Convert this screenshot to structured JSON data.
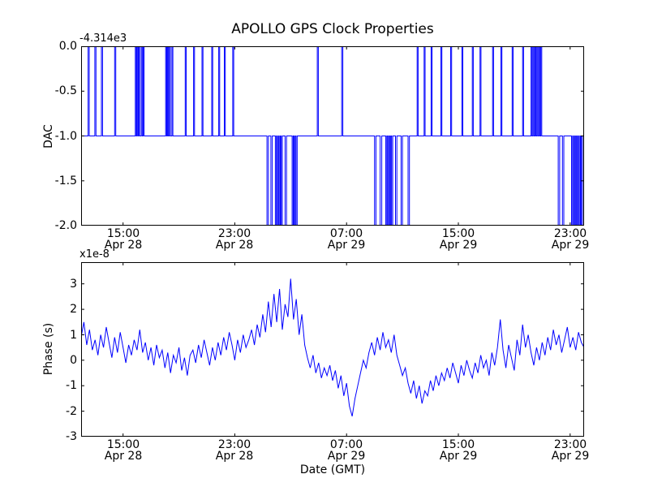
{
  "figure": {
    "background": "#ffffff",
    "text_color": "#000000",
    "frame_color": "#000000"
  },
  "chart_data": [
    {
      "type": "line",
      "title": "APOLLO GPS Clock Properties",
      "ylabel": "DAC",
      "y_offset_label": "-4.314e3",
      "y_offset_value": -4314,
      "xlim": [
        0,
        36
      ],
      "ylim": [
        -2.0,
        0.0
      ],
      "yticks": [
        0.0,
        -0.5,
        -1.0,
        -1.5,
        -2.0
      ],
      "ytick_labels": [
        "0.0",
        "-0.5",
        "-1.0",
        "-1.5",
        "-2.0"
      ],
      "xticks": [
        3,
        11,
        19,
        27,
        35
      ],
      "xtick_labels": [
        {
          "time": "15:00",
          "date": "Apr 28"
        },
        {
          "time": "23:00",
          "date": "Apr 28"
        },
        {
          "time": "07:00",
          "date": "Apr 29"
        },
        {
          "time": "15:00",
          "date": "Apr 29"
        },
        {
          "time": "23:00",
          "date": "Apr 29"
        }
      ],
      "x_unit": "hours",
      "grid": false,
      "legend": false,
      "line_color": "#0000ff",
      "series": {
        "name": "DAC",
        "baseline": -1.0,
        "events": [
          [
            0.5,
            0.58,
            0
          ],
          [
            0.98,
            1.06,
            0
          ],
          [
            1.45,
            1.53,
            0
          ],
          [
            2.4,
            2.48,
            0
          ],
          [
            3.88,
            3.95,
            0
          ],
          [
            4.0,
            4.07,
            0
          ],
          [
            4.12,
            4.19,
            0
          ],
          [
            4.3,
            4.37,
            0
          ],
          [
            4.44,
            4.51,
            0
          ],
          [
            6.05,
            6.12,
            0
          ],
          [
            6.18,
            6.25,
            0
          ],
          [
            6.32,
            6.39,
            0
          ],
          [
            6.5,
            6.57,
            0
          ],
          [
            7.45,
            7.52,
            0
          ],
          [
            8.05,
            8.12,
            0
          ],
          [
            8.65,
            8.72,
            0
          ],
          [
            9.35,
            9.42,
            0
          ],
          [
            9.85,
            9.92,
            0
          ],
          [
            10.25,
            10.32,
            0
          ],
          [
            10.85,
            10.92,
            0
          ],
          [
            13.3,
            13.4,
            -2
          ],
          [
            13.58,
            13.68,
            -2
          ],
          [
            13.9,
            13.98,
            -2
          ],
          [
            14.04,
            14.12,
            -2
          ],
          [
            14.18,
            14.26,
            -2
          ],
          [
            14.32,
            14.4,
            -2
          ],
          [
            14.6,
            14.7,
            -2
          ],
          [
            15.1,
            15.18,
            -2
          ],
          [
            15.24,
            15.32,
            -2
          ],
          [
            15.38,
            15.46,
            -2
          ],
          [
            16.9,
            16.98,
            0
          ],
          [
            18.65,
            18.73,
            0
          ],
          [
            21.0,
            21.1,
            -2
          ],
          [
            21.4,
            21.52,
            -2
          ],
          [
            21.8,
            21.88,
            -2
          ],
          [
            21.94,
            22.02,
            -2
          ],
          [
            22.08,
            22.16,
            -2
          ],
          [
            22.22,
            22.3,
            -2
          ],
          [
            22.5,
            22.6,
            -2
          ],
          [
            22.9,
            23.0,
            -2
          ],
          [
            23.4,
            23.5,
            -2
          ],
          [
            24.05,
            24.12,
            0
          ],
          [
            24.55,
            24.62,
            0
          ],
          [
            25.05,
            25.12,
            0
          ],
          [
            25.75,
            25.82,
            0
          ],
          [
            26.45,
            26.52,
            0
          ],
          [
            27.25,
            27.32,
            0
          ],
          [
            28.0,
            28.07,
            0
          ],
          [
            28.55,
            28.62,
            0
          ],
          [
            29.45,
            29.52,
            0
          ],
          [
            30.05,
            30.12,
            0
          ],
          [
            30.85,
            30.92,
            0
          ],
          [
            31.6,
            31.67,
            0
          ],
          [
            32.2,
            32.27,
            0
          ],
          [
            32.34,
            32.41,
            0
          ],
          [
            32.48,
            32.55,
            0
          ],
          [
            32.62,
            32.69,
            0
          ],
          [
            32.76,
            32.83,
            0
          ],
          [
            32.9,
            32.97,
            0
          ],
          [
            34.15,
            34.25,
            -2
          ],
          [
            34.45,
            34.55,
            -2
          ],
          [
            35.1,
            35.18,
            -2
          ],
          [
            35.24,
            35.32,
            -2
          ],
          [
            35.38,
            35.46,
            -2
          ],
          [
            35.52,
            35.6,
            -2
          ],
          [
            35.66,
            35.74,
            -2
          ],
          [
            35.8,
            35.88,
            -2
          ]
        ]
      }
    },
    {
      "type": "line",
      "ylabel": "Phase (s)",
      "y_scale_label": "x1e-8",
      "y_unit_multiplier": 1e-08,
      "xlabel": "Date (GMT)",
      "xlim": [
        0,
        36
      ],
      "ylim": [
        -3,
        3.85
      ],
      "yticks": [
        3,
        2,
        1,
        0,
        -1,
        -2,
        -3
      ],
      "ytick_labels": [
        "3",
        "2",
        "1",
        "0",
        "-1",
        "-2",
        "-3"
      ],
      "xticks": [
        3,
        11,
        19,
        27,
        35
      ],
      "xtick_labels": [
        {
          "time": "15:00",
          "date": "Apr 28"
        },
        {
          "time": "23:00",
          "date": "Apr 28"
        },
        {
          "time": "07:00",
          "date": "Apr 29"
        },
        {
          "time": "15:00",
          "date": "Apr 29"
        },
        {
          "time": "23:00",
          "date": "Apr 29"
        }
      ],
      "x_unit": "hours",
      "grid": false,
      "legend": false,
      "line_color": "#0000ff",
      "series": {
        "name": "Phase",
        "x_start": 0,
        "x_step": 0.2,
        "y": [
          0.9,
          1.5,
          0.6,
          1.2,
          0.4,
          0.8,
          0.2,
          1.0,
          0.5,
          1.3,
          0.7,
          0.1,
          0.9,
          0.3,
          1.1,
          0.5,
          -0.1,
          0.6,
          0.2,
          0.8,
          0.4,
          1.2,
          0.3,
          0.7,
          0.0,
          0.5,
          -0.2,
          0.6,
          0.1,
          0.4,
          -0.3,
          0.3,
          -0.5,
          0.2,
          -0.1,
          0.5,
          -0.4,
          0.1,
          -0.6,
          0.2,
          0.4,
          -0.1,
          0.6,
          0.1,
          0.8,
          0.3,
          -0.2,
          0.5,
          0.0,
          0.7,
          0.2,
          0.9,
          0.4,
          1.1,
          0.6,
          0.0,
          0.8,
          0.3,
          1.0,
          0.5,
          0.8,
          1.2,
          0.6,
          1.4,
          0.9,
          1.8,
          1.1,
          2.3,
          1.3,
          2.6,
          1.5,
          2.8,
          1.2,
          2.2,
          1.7,
          3.2,
          1.6,
          2.4,
          1.0,
          1.8,
          0.6,
          0.1,
          -0.3,
          0.2,
          -0.5,
          -0.1,
          -0.7,
          -0.3,
          -0.6,
          -0.2,
          -0.8,
          -0.4,
          -1.1,
          -0.6,
          -1.4,
          -0.9,
          -1.8,
          -2.2,
          -1.5,
          -1.0,
          -0.5,
          0.0,
          -0.3,
          0.3,
          0.7,
          0.2,
          0.9,
          0.4,
          1.1,
          0.5,
          0.8,
          0.3,
          1.0,
          0.2,
          -0.2,
          -0.6,
          -0.3,
          -0.9,
          -1.3,
          -0.8,
          -1.5,
          -1.0,
          -1.7,
          -1.2,
          -1.4,
          -0.8,
          -1.2,
          -0.6,
          -1.0,
          -0.5,
          -0.8,
          -0.3,
          -0.7,
          -0.1,
          -0.5,
          -0.9,
          -0.2,
          -0.6,
          0.0,
          -0.4,
          -0.7,
          -0.1,
          -0.5,
          0.2,
          -0.3,
          0.0,
          -0.6,
          0.3,
          -0.2,
          0.5,
          1.6,
          0.4,
          -0.3,
          0.6,
          0.1,
          -0.4,
          0.8,
          0.2,
          1.4,
          0.5,
          1.0,
          0.3,
          -0.2,
          0.5,
          0.0,
          0.7,
          0.2,
          0.9,
          0.4,
          1.2,
          0.6,
          1.0,
          0.3,
          0.8,
          1.3,
          0.5,
          0.9,
          0.4,
          1.1,
          0.7,
          0.5
        ]
      }
    }
  ]
}
